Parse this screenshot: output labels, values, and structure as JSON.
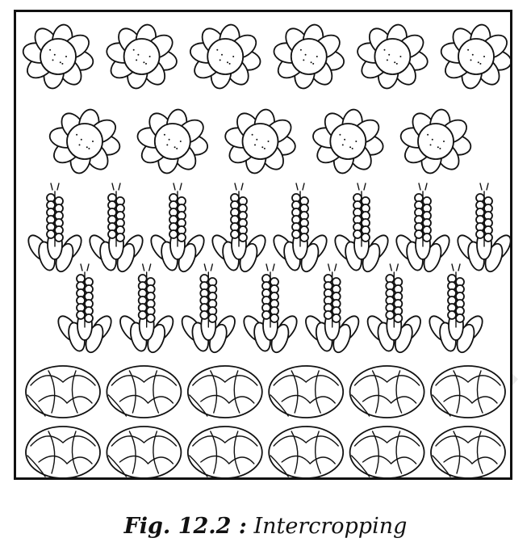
{
  "caption": {
    "figure_number": "Fig. 12.2 :",
    "title": "Intercropping"
  },
  "field": {
    "rows": [
      {
        "crop": "flower-plant",
        "count": 6
      },
      {
        "crop": "flower-plant",
        "count": 5
      },
      {
        "crop": "spike-plant",
        "count": 8
      },
      {
        "crop": "spike-plant",
        "count": 7
      },
      {
        "crop": "cabbage-plant",
        "count": 6
      },
      {
        "crop": "cabbage-plant",
        "count": 6
      }
    ]
  },
  "colors": {
    "ink": "#111111",
    "paper": "#ffffff"
  }
}
